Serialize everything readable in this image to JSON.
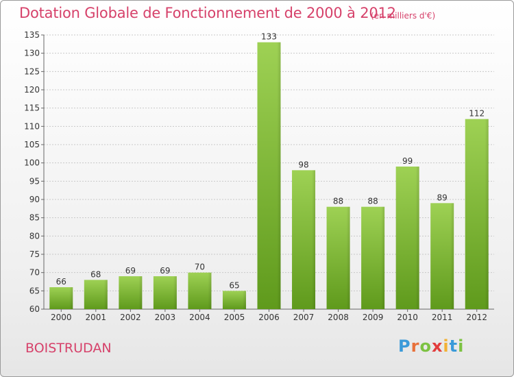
{
  "title": "Dotation Globale de Fonctionnement de 2000 à 2012",
  "unit": "(en milliers d'€)",
  "commune": "BOISTRUDAN",
  "logo": {
    "text": "Proxiti",
    "colors": [
      "#3a9ad9",
      "#e8703a",
      "#7cc242",
      "#e23c3c",
      "#f2b134",
      "#3a9ad9",
      "#7cc242"
    ]
  },
  "colors": {
    "bar_top": "#9ed154",
    "bar_bottom": "#5f9a1c",
    "title": "#d6416a"
  },
  "chart_data": {
    "type": "bar",
    "categories": [
      "2000",
      "2001",
      "2002",
      "2003",
      "2004",
      "2005",
      "2006",
      "2007",
      "2008",
      "2009",
      "2010",
      "2011",
      "2012"
    ],
    "values": [
      66,
      68,
      69,
      69,
      70,
      65,
      133,
      98,
      88,
      88,
      99,
      89,
      112
    ],
    "value_labels": [
      "66",
      "68",
      "69",
      "69",
      "70",
      "65",
      "133",
      "98",
      "88",
      "88",
      "99",
      "89",
      "112"
    ],
    "ylim": [
      60,
      135
    ],
    "yticks": [
      60,
      65,
      70,
      75,
      80,
      85,
      90,
      95,
      100,
      105,
      110,
      115,
      120,
      125,
      130,
      135
    ],
    "ytick_labels": [
      "60",
      "65",
      "70",
      "75",
      "80",
      "85",
      "90",
      "95",
      "100",
      "105",
      "110",
      "115",
      "120",
      "125",
      "130",
      "135"
    ],
    "grid": true,
    "title": "Dotation Globale de Fonctionnement de 2000 à 2012",
    "xlabel": "",
    "ylabel": ""
  }
}
